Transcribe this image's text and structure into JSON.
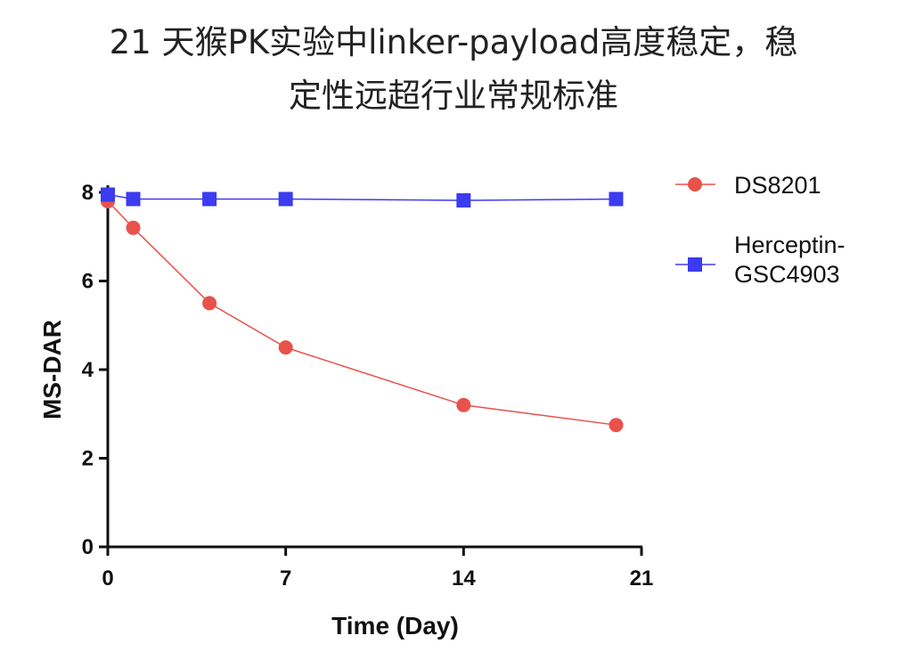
{
  "title": {
    "line1": "21 天猴PK实验中linker-payload高度稳定，稳",
    "line2": "定性远超行业常规标准"
  },
  "chart_data": {
    "type": "line",
    "title": "21 天猴PK实验中linker-payload高度稳定，稳定性远超行业常规标准",
    "xlabel": "Time (Day)",
    "ylabel": "MS-DAR",
    "xlim": [
      0,
      21
    ],
    "ylim": [
      0,
      8
    ],
    "xticks": [
      0,
      7,
      14,
      21
    ],
    "yticks": [
      0,
      2,
      4,
      6,
      8
    ],
    "grid": false,
    "legend_position": "right",
    "series": [
      {
        "name": "DS8201",
        "color": "#e8524a",
        "marker": "circle",
        "x": [
          0,
          1,
          4,
          7,
          14,
          20
        ],
        "y": [
          7.8,
          7.2,
          5.5,
          4.5,
          3.2,
          2.75
        ]
      },
      {
        "name": "Herceptin-GSC4903",
        "legend_lines": [
          "Herceptin-",
          "GSC4903"
        ],
        "color": "#3b3bf0",
        "marker": "square",
        "x": [
          0,
          1,
          4,
          7,
          14,
          20
        ],
        "y": [
          7.95,
          7.85,
          7.85,
          7.85,
          7.82,
          7.85
        ]
      }
    ]
  }
}
